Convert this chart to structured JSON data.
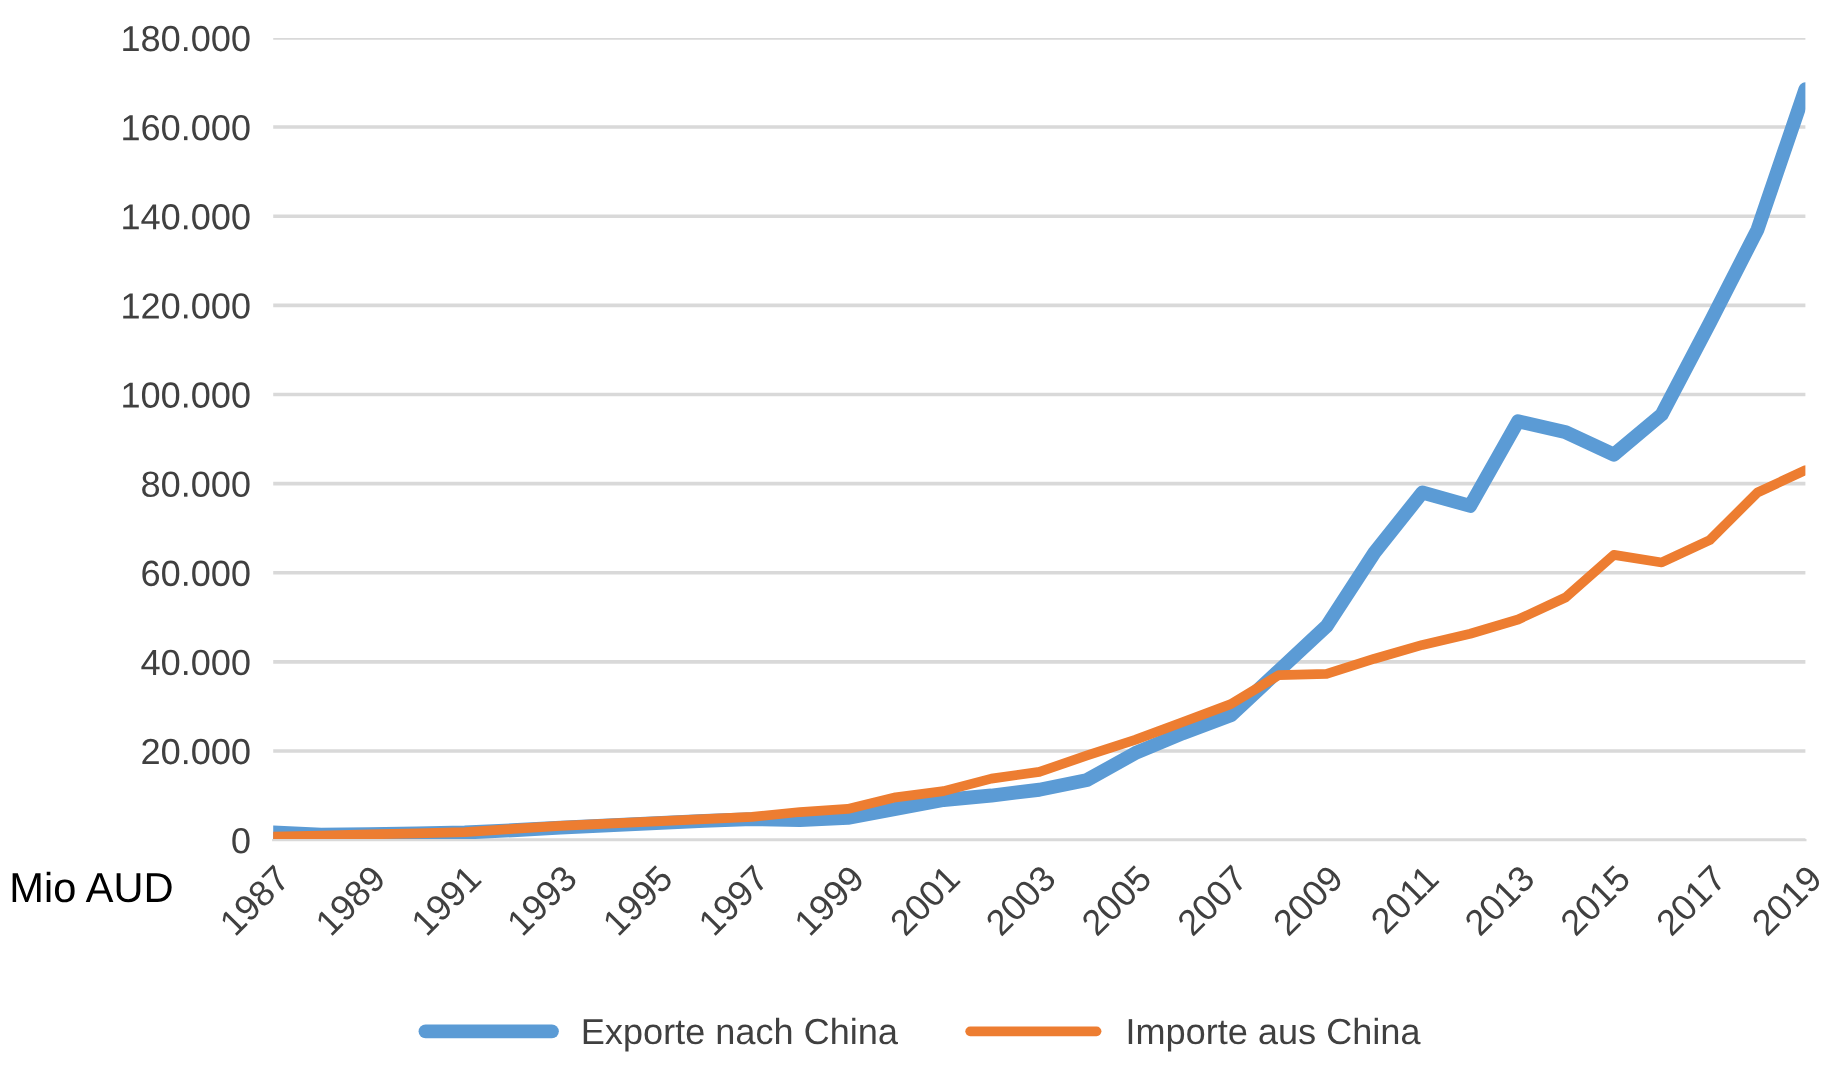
{
  "chart_data": {
    "type": "line",
    "x": [
      1987,
      1988,
      1989,
      1990,
      1991,
      1992,
      1993,
      1994,
      1995,
      1996,
      1997,
      1998,
      1999,
      2000,
      2001,
      2002,
      2003,
      2004,
      2005,
      2006,
      2007,
      2008,
      2009,
      2010,
      2011,
      2012,
      2013,
      2014,
      2015,
      2016,
      2017,
      2018,
      2019
    ],
    "series": [
      {
        "name": "Exporte nach China",
        "color": "#5b9bd5",
        "values": [
          1700,
          1200,
          1300,
          1500,
          1700,
          2200,
          2800,
          3300,
          3800,
          4300,
          4700,
          4500,
          5000,
          7000,
          9000,
          10000,
          11300,
          13500,
          19500,
          24000,
          28000,
          38000,
          48000,
          64500,
          78000,
          75000,
          94000,
          91500,
          86500,
          95500,
          116000,
          137000,
          168500
        ]
      },
      {
        "name": "Importe aus China",
        "color": "#ed7d31",
        "values": [
          800,
          1000,
          1300,
          1500,
          1800,
          2500,
          3200,
          3700,
          4200,
          4700,
          5200,
          6300,
          7000,
          9600,
          11000,
          13800,
          15300,
          19000,
          22500,
          26500,
          30500,
          37000,
          37300,
          40700,
          43800,
          46300,
          49500,
          54500,
          64000,
          62300,
          67300,
          78000,
          83000
        ]
      }
    ],
    "xlim": [
      1987,
      2019
    ],
    "xticks": [
      1987,
      1989,
      1991,
      1993,
      1995,
      1997,
      1999,
      2001,
      2003,
      2005,
      2007,
      2009,
      2011,
      2013,
      2015,
      2017,
      2019
    ],
    "ylim": [
      0,
      180000
    ],
    "yticks": [
      {
        "value": 0,
        "label": "0"
      },
      {
        "value": 20000,
        "label": "20.000"
      },
      {
        "value": 40000,
        "label": "40.000"
      },
      {
        "value": 60000,
        "label": "60.000"
      },
      {
        "value": 80000,
        "label": "80.000"
      },
      {
        "value": 100000,
        "label": "100.000"
      },
      {
        "value": 120000,
        "label": "120.000"
      },
      {
        "value": 140000,
        "label": "140.000"
      },
      {
        "value": 160000,
        "label": "160.000"
      },
      {
        "value": 180000,
        "label": "180.000"
      }
    ],
    "annotations": [
      "Mio AUD"
    ],
    "grid": "y",
    "legend": "bottom",
    "marker": "none",
    "line_style": "solid"
  }
}
